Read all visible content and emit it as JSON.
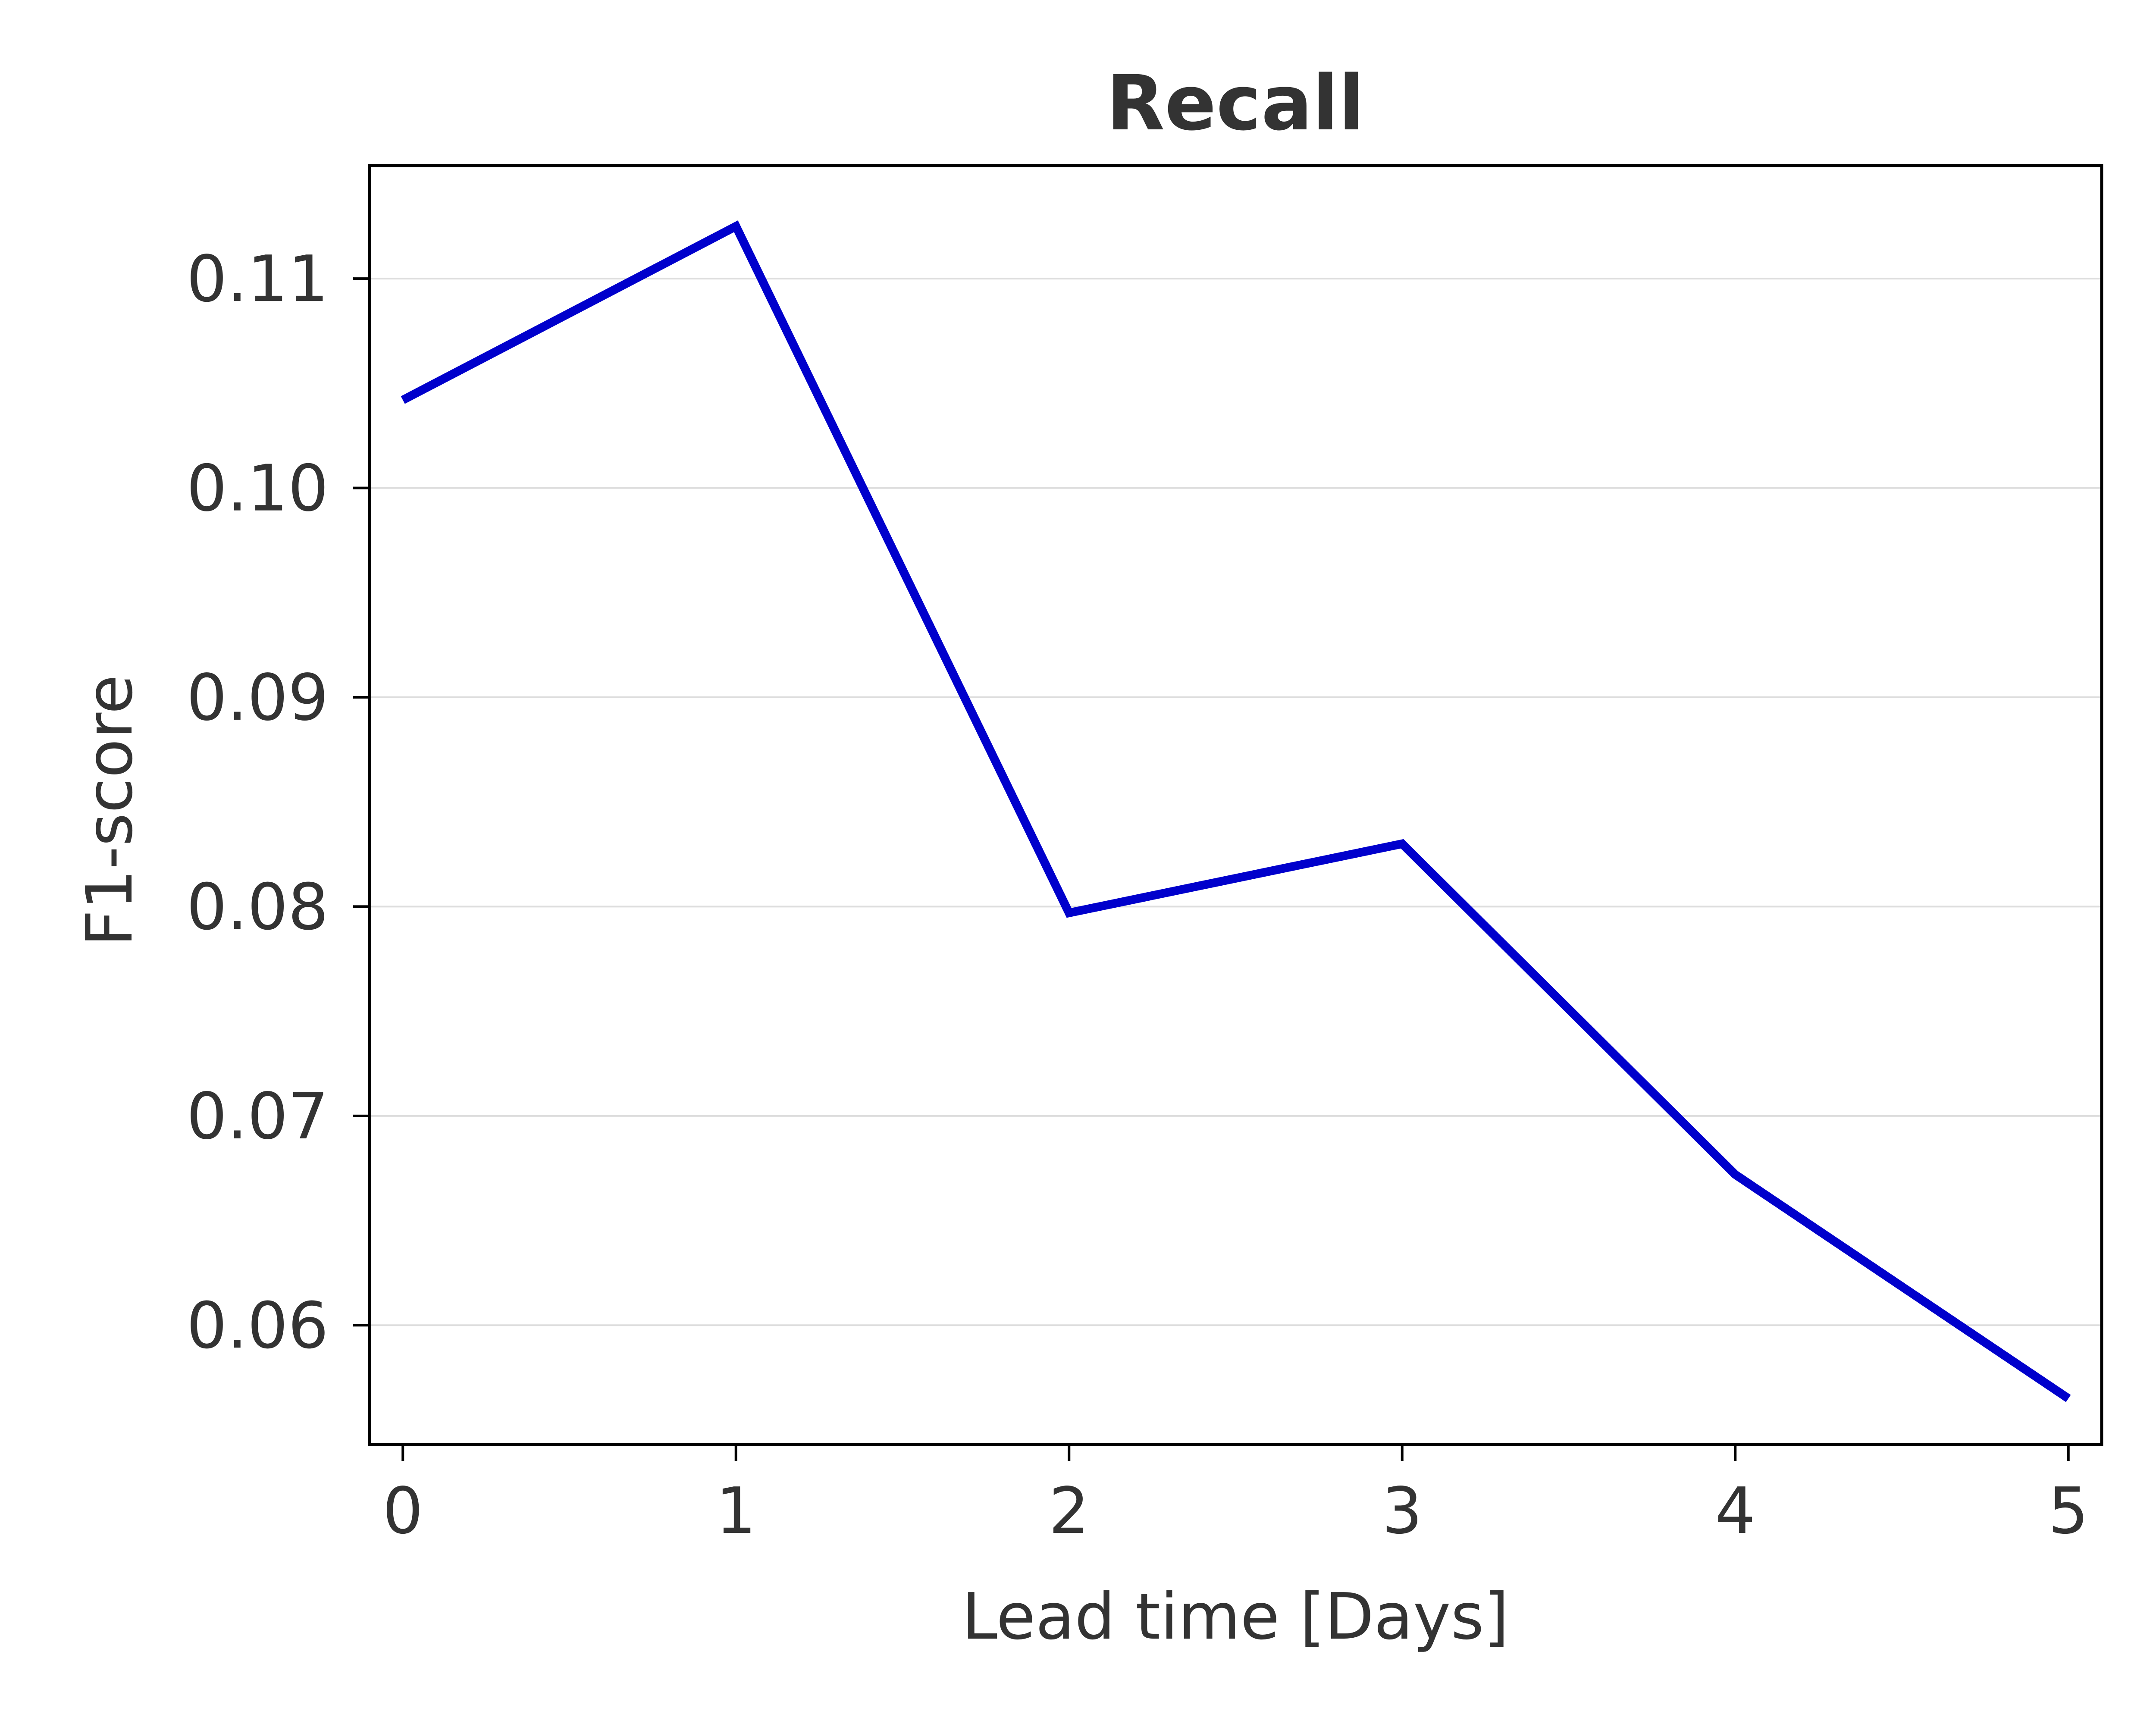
{
  "chart_data": {
    "type": "line",
    "title": "Recall",
    "xlabel": "Lead time [Days]",
    "ylabel": "F1-score",
    "x": [
      0,
      1,
      2,
      3,
      4,
      5
    ],
    "series": [
      {
        "values": [
          0.1042,
          0.1125,
          0.0797,
          0.083,
          0.0672,
          0.0565
        ],
        "color": "#0000cc"
      }
    ],
    "xticks": [
      "0",
      "1",
      "2",
      "3",
      "4",
      "5"
    ],
    "yticks": [
      "0.06",
      "0.07",
      "0.08",
      "0.09",
      "0.10",
      "0.11"
    ],
    "xlim": [
      -0.1,
      5.1
    ],
    "ylim": [
      0.0543,
      0.1154
    ],
    "grid": "horizontal",
    "grid_color": "#dddddd",
    "frame_color": "#000000",
    "text_color": "#333333"
  }
}
